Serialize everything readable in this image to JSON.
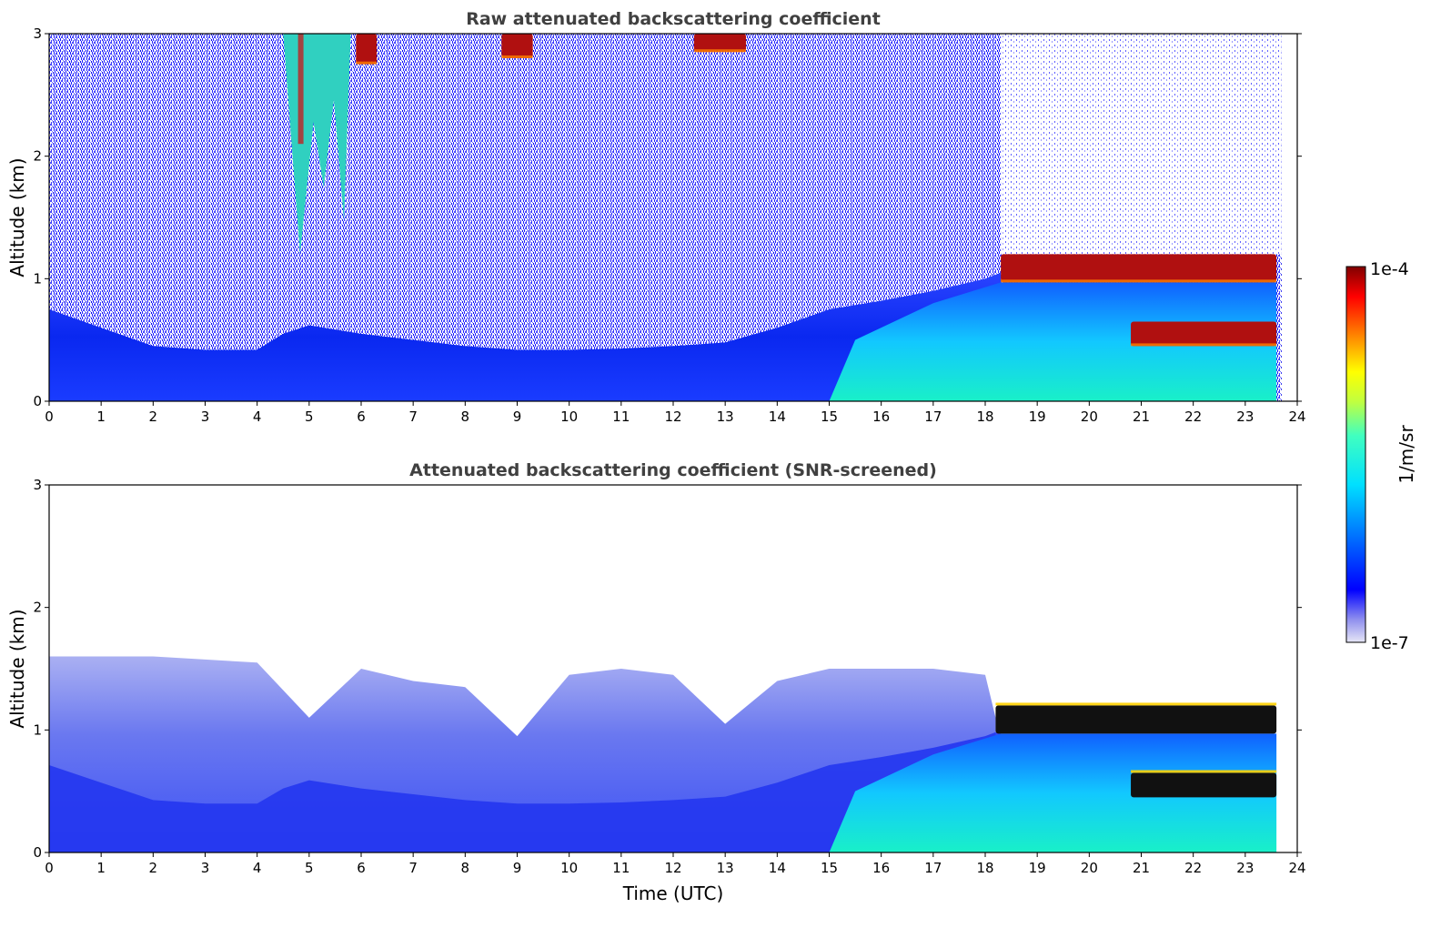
{
  "chart_data": [
    {
      "type": "heatmap",
      "title": "Raw attenuated backscattering coefficient",
      "xlabel": "",
      "ylabel": "Altitude (km)",
      "xlim": [
        0,
        24
      ],
      "ylim": [
        0,
        3
      ],
      "xticks": [
        "0",
        "1",
        "2",
        "3",
        "4",
        "5",
        "6",
        "7",
        "8",
        "9",
        "10",
        "11",
        "12",
        "13",
        "14",
        "15",
        "16",
        "17",
        "18",
        "19",
        "20",
        "21",
        "22",
        "23",
        "24"
      ],
      "yticks": [
        "0",
        "1",
        "2",
        "3"
      ],
      "grid": false,
      "colormap": "jet",
      "data_end_time": 23.7,
      "boundary_layer_top_km": {
        "time": [
          0,
          1,
          2,
          3,
          4,
          4.5,
          5,
          6,
          7,
          8,
          9,
          10,
          11,
          12,
          13,
          14,
          15,
          16,
          17,
          18,
          18.3
        ],
        "altitude": [
          0.75,
          0.6,
          0.45,
          0.42,
          0.42,
          0.55,
          0.62,
          0.55,
          0.5,
          0.45,
          0.42,
          0.42,
          0.43,
          0.45,
          0.48,
          0.6,
          0.75,
          0.82,
          0.9,
          1.0,
          1.05
        ]
      },
      "features": [
        {
          "label": "cloud layer",
          "time": [
            18.3,
            23.6
          ],
          "altitude_km": [
            0.97,
            1.2
          ],
          "level": "high"
        },
        {
          "label": "low cloud",
          "time": [
            20.8,
            23.6
          ],
          "altitude_km": [
            0.45,
            0.65
          ],
          "level": "high"
        },
        {
          "label": "fall streaks",
          "time": [
            4.5,
            5.8
          ],
          "altitude_km": [
            1.2,
            3.0
          ],
          "level": "medium"
        },
        {
          "label": "cloud base",
          "time": [
            5.9,
            6.3
          ],
          "altitude_km": [
            2.75,
            3.0
          ],
          "level": "high"
        },
        {
          "label": "cloud base",
          "time": [
            8.7,
            9.3
          ],
          "altitude_km": [
            2.8,
            3.0
          ],
          "level": "high"
        },
        {
          "label": "cloud base",
          "time": [
            12.4,
            13.4
          ],
          "altitude_km": [
            2.85,
            3.0
          ],
          "level": "high"
        }
      ]
    },
    {
      "type": "heatmap",
      "title": "Attenuated backscattering coefficient (SNR-screened)",
      "xlabel": "Time (UTC)",
      "ylabel": "Altitude (km)",
      "xlim": [
        0,
        24
      ],
      "ylim": [
        0,
        3
      ],
      "xticks": [
        "0",
        "1",
        "2",
        "3",
        "4",
        "5",
        "6",
        "7",
        "8",
        "9",
        "10",
        "11",
        "12",
        "13",
        "14",
        "15",
        "16",
        "17",
        "18",
        "19",
        "20",
        "21",
        "22",
        "23",
        "24"
      ],
      "yticks": [
        "0",
        "1",
        "2",
        "3"
      ],
      "grid": false,
      "colormap": "jet",
      "data_end_time": 23.7,
      "screened_top_km": {
        "time": [
          0,
          2,
          4,
          5,
          6,
          7,
          8,
          9,
          10,
          11,
          12,
          13,
          14,
          15,
          16,
          17,
          18,
          18.2
        ],
        "altitude": [
          1.6,
          1.6,
          1.55,
          1.1,
          1.5,
          1.4,
          1.35,
          0.95,
          1.45,
          1.5,
          1.45,
          1.05,
          1.4,
          1.5,
          1.5,
          1.5,
          1.45,
          1.1
        ]
      },
      "features": [
        {
          "label": "cloud layer",
          "time": [
            18.2,
            23.6
          ],
          "altitude_km": [
            0.97,
            1.2
          ],
          "level": "saturated"
        },
        {
          "label": "low cloud",
          "time": [
            20.8,
            23.6
          ],
          "altitude_km": [
            0.45,
            0.65
          ],
          "level": "saturated"
        }
      ]
    }
  ],
  "colorbar": {
    "label": "1/m/sr",
    "max_label": "1e-4",
    "min_label": "1e-7"
  }
}
